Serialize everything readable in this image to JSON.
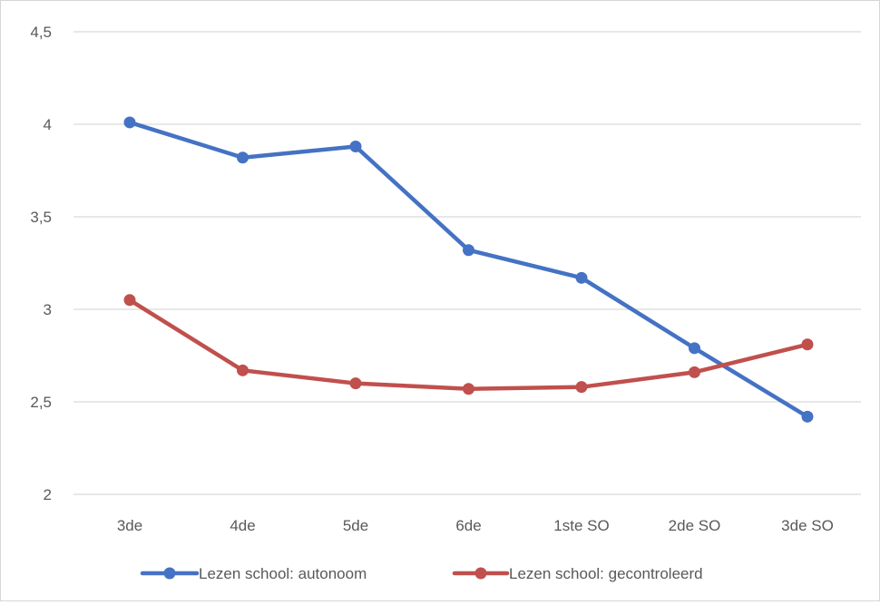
{
  "chart_data": {
    "type": "line",
    "categories": [
      "3de",
      "4de",
      "5de",
      "6de",
      "1ste SO",
      "2de SO",
      "3de SO"
    ],
    "y_ticks": [
      "2",
      "2,5",
      "3",
      "3,5",
      "4",
      "4,5"
    ],
    "ylim": [
      2,
      4.5
    ],
    "grid": true,
    "legend_position": "bottom",
    "series": [
      {
        "name": "Lezen school: autonoom",
        "color": "#4472C4",
        "values": [
          4.01,
          3.82,
          3.88,
          3.32,
          3.17,
          2.79,
          2.42
        ]
      },
      {
        "name": "Lezen school: gecontroleerd",
        "color": "#C0504D",
        "values": [
          3.05,
          2.67,
          2.6,
          2.57,
          2.58,
          2.66,
          2.81
        ]
      }
    ]
  }
}
